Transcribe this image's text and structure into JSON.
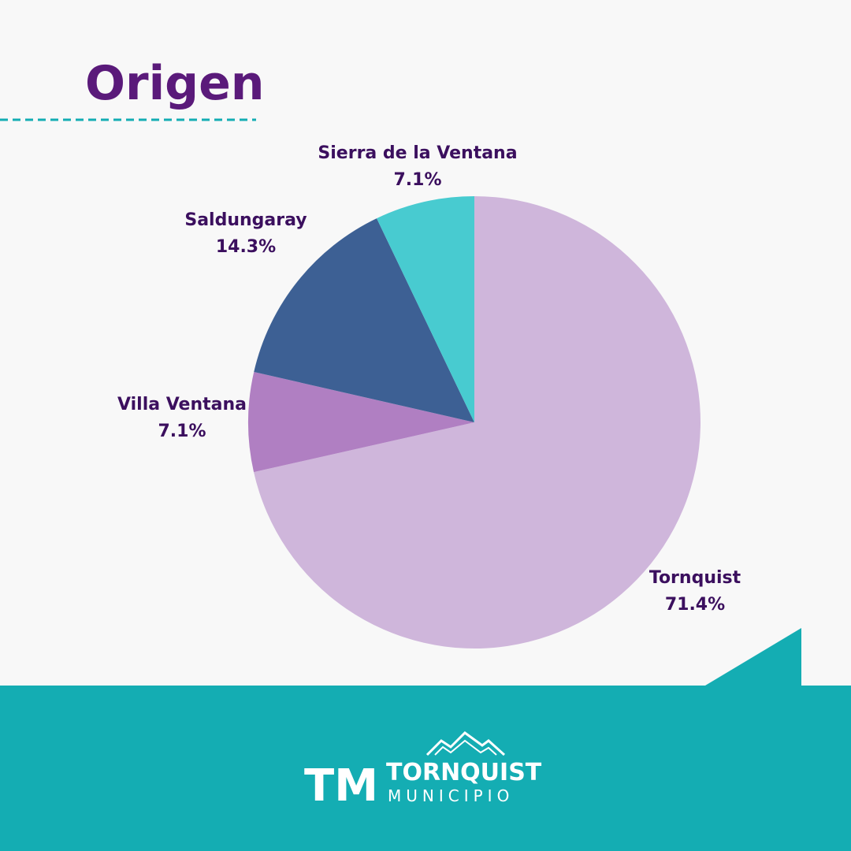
{
  "chart_data": {
    "type": "pie",
    "title": "Origen",
    "categories": [
      "Tornquist",
      "Villa Ventana",
      "Saldungaray",
      "Sierra de la Ventana"
    ],
    "values": [
      71.4,
      7.1,
      14.3,
      7.1
    ],
    "value_labels": [
      "71.4%",
      "7.1%",
      "14.3%",
      "7.1%"
    ],
    "colors": [
      "#cfb6db",
      "#b07fc2",
      "#3d6094",
      "#48cbd0"
    ]
  },
  "footer": {
    "logo_mark": "TM",
    "name": "TORNQUIST",
    "subtitle": "MUNICIPIO"
  }
}
